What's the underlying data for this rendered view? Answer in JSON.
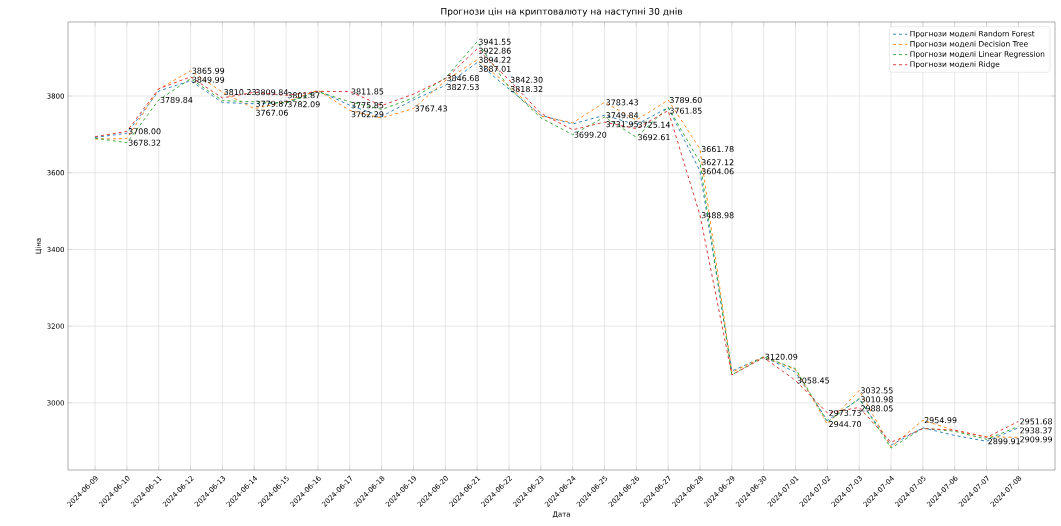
{
  "chart_data": {
    "type": "line",
    "title": "Прогнози цін на криптовалюту на наступні 30 днів",
    "xlabel": "Дата",
    "ylabel": "Ціна",
    "categories": [
      "2024-06-09",
      "2024-06-10",
      "2024-06-11",
      "2024-06-12",
      "2024-06-13",
      "2024-06-14",
      "2024-06-15",
      "2024-06-16",
      "2024-06-17",
      "2024-06-18",
      "2024-06-19",
      "2024-06-20",
      "2024-06-21",
      "2024-06-22",
      "2024-06-23",
      "2024-06-24",
      "2024-06-25",
      "2024-06-26",
      "2024-06-27",
      "2024-06-28",
      "2024-06-29",
      "2024-06-30",
      "2024-07-01",
      "2024-07-02",
      "2024-07-03",
      "2024-07-04",
      "2024-07-05",
      "2024-07-06",
      "2024-07-07",
      "2024-07-08"
    ],
    "series": [
      {
        "name": "Прогнози моделі Random Forest",
        "color": "#1f77b4",
        "values": [
          3692,
          3703,
          3813,
          3840,
          3783,
          3779.87,
          3782.09,
          3814,
          3775.85,
          3747,
          3790,
          3827.53,
          3887.01,
          3818.32,
          3750,
          3727,
          3749.84,
          3725.14,
          3770,
          3604.06,
          3083,
          3120.09,
          3080,
          2954,
          3010,
          2890,
          2935,
          2915,
          2899.91,
          2935
        ],
        "value_labels": [
          null,
          null,
          null,
          null,
          null,
          "3779.87",
          "3782.09",
          null,
          "3775.85",
          null,
          null,
          "3827.53",
          "3887.01",
          "3818.32",
          null,
          null,
          "3749.84",
          "3725.14",
          null,
          "3604.06",
          null,
          "3120.09",
          null,
          null,
          null,
          null,
          null,
          null,
          "2899.91",
          null
        ]
      },
      {
        "name": "Прогнози моделі Decision Tree",
        "color": "#ff7f0e",
        "values": [
          3688,
          3689,
          3818,
          3865.99,
          3810.23,
          3767.06,
          3785,
          3815,
          3762.29,
          3743,
          3767.43,
          3840,
          3894.22,
          3827,
          3748,
          3730,
          3783.43,
          3737,
          3789.6,
          3661.78,
          3080,
          3120,
          3087,
          2944.7,
          3032.55,
          2885,
          2954.99,
          2928,
          2912,
          2909.99
        ],
        "value_labels": [
          null,
          null,
          null,
          "3865.99",
          "3810.23",
          "3767.06",
          null,
          null,
          "3762.29",
          null,
          "3767.43",
          null,
          "3894.22",
          null,
          null,
          null,
          "3783.43",
          null,
          "3789.60",
          "3661.78",
          null,
          null,
          null,
          "2944.70",
          "3032.55",
          null,
          "2954.99",
          null,
          null,
          "2909.99"
        ]
      },
      {
        "name": "Прогнози моделі Linear Regression",
        "color": "#2ca02c",
        "values": [
          3690,
          3678.32,
          3789.84,
          3845,
          3788,
          3785,
          3782,
          3811,
          3785,
          3765,
          3795,
          3846.68,
          3941.55,
          3822,
          3743,
          3699.2,
          3745,
          3692.61,
          3771,
          3627.12,
          3073,
          3120,
          3089,
          2950,
          3010.98,
          2882,
          2934,
          2926,
          2905,
          2938.37
        ],
        "value_labels": [
          null,
          "3678.32",
          "3789.84",
          null,
          null,
          null,
          null,
          null,
          null,
          null,
          null,
          "3846.68",
          "3941.55",
          null,
          null,
          "3699.20",
          null,
          "3692.61",
          null,
          "3627.12",
          null,
          null,
          null,
          null,
          "3010.98",
          null,
          null,
          null,
          null,
          "2938.37"
        ]
      },
      {
        "name": "Прогнози моделі Ridge",
        "color": "#d62728",
        "values": [
          3694,
          3708,
          3819,
          3849.99,
          3795,
          3809.84,
          3801.87,
          3812,
          3811.85,
          3775,
          3805,
          3845,
          3922.86,
          3842.3,
          3755,
          3712,
          3731.95,
          3715,
          3761.85,
          3488.98,
          3073,
          3118,
          3058.45,
          2973.73,
          2988.05,
          2897,
          2933,
          2929,
          2910,
          2951.68
        ],
        "value_labels": [
          null,
          "3708.00",
          null,
          "3849.99",
          null,
          "3809.84",
          "3801.87",
          null,
          "3811.85",
          null,
          null,
          null,
          "3922.86",
          "3842.30",
          null,
          null,
          "3731.95",
          null,
          "3761.85",
          "3488.98",
          null,
          null,
          "3058.45",
          "2973.73",
          "2988.05",
          null,
          null,
          null,
          null,
          "2951.68"
        ]
      }
    ],
    "ylim": [
      2825,
      3993
    ],
    "yticks": [
      3000,
      3200,
      3400,
      3600,
      3800
    ],
    "grid": true,
    "legend": "top right",
    "line_style": "dashed",
    "marker": "none"
  }
}
